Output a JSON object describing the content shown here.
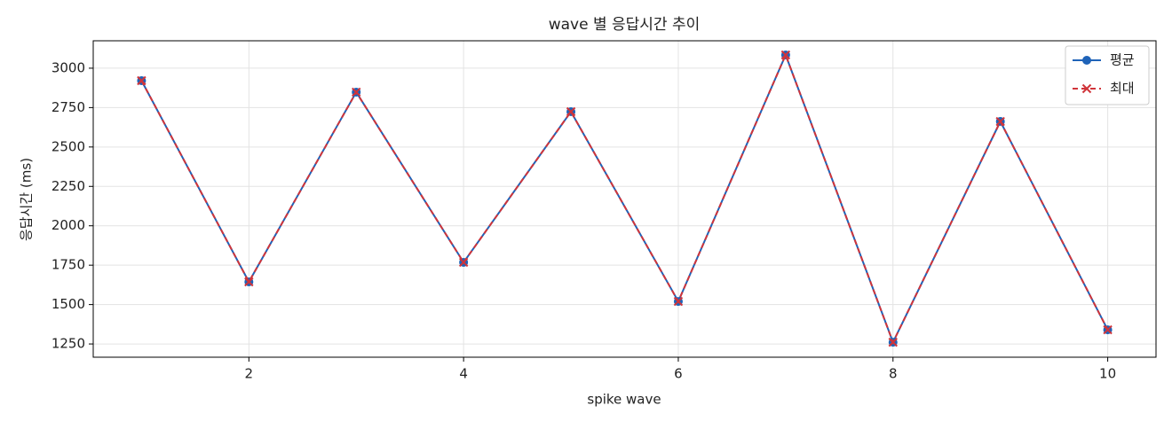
{
  "chart_data": {
    "type": "line",
    "title": "wave 별 응답시간 추이",
    "xlabel": "spike wave",
    "ylabel": "응답시간 (ms)",
    "x": [
      1,
      2,
      3,
      4,
      5,
      6,
      7,
      8,
      9,
      10
    ],
    "series": [
      {
        "name": "평균",
        "color": "#1f63b8",
        "linestyle": "solid",
        "marker": "o",
        "values": [
          2921,
          1644,
          2848,
          1768,
          2724,
          1520,
          3084,
          1261,
          2662,
          1340
        ]
      },
      {
        "name": "최대",
        "color": "#d0343a",
        "linestyle": "dashed",
        "marker": "x",
        "values": [
          2921,
          1644,
          2848,
          1768,
          2724,
          1520,
          3084,
          1261,
          2662,
          1340
        ]
      }
    ],
    "xlim": [
      0.55,
      10.45
    ],
    "ylim": [
      1166,
      3174
    ],
    "xticks": [
      2,
      4,
      6,
      8,
      10
    ],
    "yticks": [
      1250,
      1500,
      1750,
      2000,
      2250,
      2500,
      2750,
      3000
    ],
    "grid": true,
    "legend": "upper right"
  }
}
